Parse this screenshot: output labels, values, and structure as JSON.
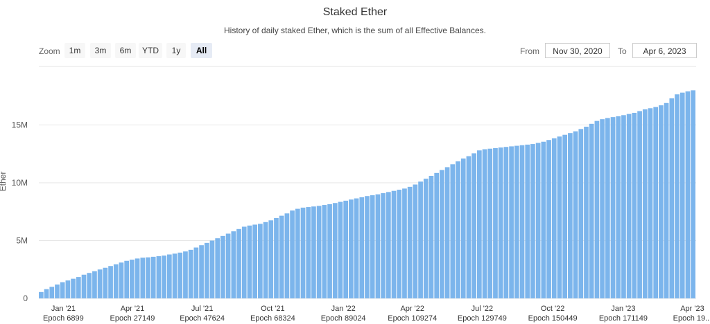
{
  "chart_data": {
    "type": "bar",
    "title": "Staked Ether",
    "subtitle": "History of daily staked Ether, which is the sum of all Effective Balances.",
    "ylabel": "Ether",
    "xlabel": "",
    "ylim": [
      0,
      18500000
    ],
    "y_ticks": [
      {
        "value": 0,
        "label": "0"
      },
      {
        "value": 5000000,
        "label": "5M"
      },
      {
        "value": 10000000,
        "label": "10M"
      },
      {
        "value": 15000000,
        "label": "15M"
      }
    ],
    "x_range": [
      "2020-11-30",
      "2023-04-06"
    ],
    "x_ticks": [
      {
        "date": "2021-01-01",
        "label": "Jan '21",
        "epoch": "Epoch 6899"
      },
      {
        "date": "2021-04-01",
        "label": "Apr '21",
        "epoch": "Epoch 27149"
      },
      {
        "date": "2021-07-01",
        "label": "Jul '21",
        "epoch": "Epoch 47624"
      },
      {
        "date": "2021-10-01",
        "label": "Oct '21",
        "epoch": "Epoch 68324"
      },
      {
        "date": "2022-01-01",
        "label": "Jan '22",
        "epoch": "Epoch 89024"
      },
      {
        "date": "2022-04-01",
        "label": "Apr '22",
        "epoch": "Epoch 109274"
      },
      {
        "date": "2022-07-01",
        "label": "Jul '22",
        "epoch": "Epoch 129749"
      },
      {
        "date": "2022-10-01",
        "label": "Oct '22",
        "epoch": "Epoch 150449"
      },
      {
        "date": "2023-01-01",
        "label": "Jan '23",
        "epoch": "Epoch 171149"
      },
      {
        "date": "2023-04-01",
        "label": "Apr '23",
        "epoch": "Epoch 19..."
      }
    ],
    "series": [
      {
        "values": [
          [
            0,
            "2020-11-30",
            550000
          ],
          [
            1,
            "2020-12-07",
            800000
          ],
          [
            2,
            "2020-12-14",
            1000000
          ],
          [
            3,
            "2020-12-21",
            1200000
          ],
          [
            4,
            "2020-12-28",
            1400000
          ],
          [
            5,
            "2021-01-04",
            1550000
          ],
          [
            6,
            "2021-01-11",
            1700000
          ],
          [
            7,
            "2021-01-18",
            1850000
          ],
          [
            8,
            "2021-01-25",
            2050000
          ],
          [
            9,
            "2021-02-01",
            2200000
          ],
          [
            10,
            "2021-02-08",
            2350000
          ],
          [
            11,
            "2021-02-15",
            2500000
          ],
          [
            12,
            "2021-02-22",
            2650000
          ],
          [
            13,
            "2021-03-01",
            2800000
          ],
          [
            14,
            "2021-03-08",
            2950000
          ],
          [
            15,
            "2021-03-15",
            3100000
          ],
          [
            16,
            "2021-03-22",
            3250000
          ],
          [
            17,
            "2021-03-29",
            3350000
          ],
          [
            18,
            "2021-04-05",
            3450000
          ],
          [
            19,
            "2021-04-12",
            3520000
          ],
          [
            20,
            "2021-04-19",
            3550000
          ],
          [
            21,
            "2021-04-26",
            3600000
          ],
          [
            22,
            "2021-05-03",
            3650000
          ],
          [
            23,
            "2021-05-10",
            3700000
          ],
          [
            24,
            "2021-05-17",
            3800000
          ],
          [
            25,
            "2021-05-24",
            3870000
          ],
          [
            26,
            "2021-05-31",
            3960000
          ],
          [
            27,
            "2021-06-07",
            4060000
          ],
          [
            28,
            "2021-06-14",
            4200000
          ],
          [
            29,
            "2021-06-21",
            4400000
          ],
          [
            30,
            "2021-06-28",
            4600000
          ],
          [
            31,
            "2021-07-05",
            4800000
          ],
          [
            32,
            "2021-07-12",
            5000000
          ],
          [
            33,
            "2021-07-19",
            5200000
          ],
          [
            34,
            "2021-07-26",
            5400000
          ],
          [
            35,
            "2021-08-02",
            5600000
          ],
          [
            36,
            "2021-08-09",
            5800000
          ],
          [
            37,
            "2021-08-16",
            6000000
          ],
          [
            38,
            "2021-08-23",
            6200000
          ],
          [
            39,
            "2021-08-30",
            6300000
          ],
          [
            40,
            "2021-09-06",
            6380000
          ],
          [
            41,
            "2021-09-13",
            6450000
          ],
          [
            42,
            "2021-09-20",
            6600000
          ],
          [
            43,
            "2021-09-27",
            6750000
          ],
          [
            44,
            "2021-10-04",
            6950000
          ],
          [
            45,
            "2021-10-11",
            7150000
          ],
          [
            46,
            "2021-10-18",
            7350000
          ],
          [
            47,
            "2021-10-25",
            7600000
          ],
          [
            48,
            "2021-11-01",
            7750000
          ],
          [
            49,
            "2021-11-08",
            7850000
          ],
          [
            50,
            "2021-11-15",
            7900000
          ],
          [
            51,
            "2021-11-22",
            7950000
          ],
          [
            52,
            "2021-11-29",
            8000000
          ],
          [
            53,
            "2021-12-06",
            8080000
          ],
          [
            54,
            "2021-12-13",
            8150000
          ],
          [
            55,
            "2021-12-20",
            8250000
          ],
          [
            56,
            "2021-12-27",
            8350000
          ],
          [
            57,
            "2022-01-03",
            8450000
          ],
          [
            58,
            "2022-01-10",
            8550000
          ],
          [
            59,
            "2022-01-17",
            8650000
          ],
          [
            60,
            "2022-01-24",
            8750000
          ],
          [
            61,
            "2022-01-31",
            8850000
          ],
          [
            62,
            "2022-02-07",
            8920000
          ],
          [
            63,
            "2022-02-14",
            9000000
          ],
          [
            64,
            "2022-02-21",
            9100000
          ],
          [
            65,
            "2022-02-28",
            9200000
          ],
          [
            66,
            "2022-03-07",
            9300000
          ],
          [
            67,
            "2022-03-14",
            9400000
          ],
          [
            68,
            "2022-03-21",
            9500000
          ],
          [
            69,
            "2022-03-28",
            9650000
          ],
          [
            70,
            "2022-04-04",
            9850000
          ],
          [
            71,
            "2022-04-11",
            10100000
          ],
          [
            72,
            "2022-04-18",
            10350000
          ],
          [
            73,
            "2022-04-25",
            10600000
          ],
          [
            74,
            "2022-05-02",
            10850000
          ],
          [
            75,
            "2022-05-09",
            11100000
          ],
          [
            76,
            "2022-05-16",
            11350000
          ],
          [
            77,
            "2022-05-23",
            11600000
          ],
          [
            78,
            "2022-05-30",
            11850000
          ],
          [
            79,
            "2022-06-06",
            12100000
          ],
          [
            80,
            "2022-06-13",
            12300000
          ],
          [
            81,
            "2022-06-20",
            12550000
          ],
          [
            82,
            "2022-06-27",
            12800000
          ],
          [
            83,
            "2022-07-04",
            12900000
          ],
          [
            84,
            "2022-07-11",
            12950000
          ],
          [
            85,
            "2022-07-18",
            13000000
          ],
          [
            86,
            "2022-07-25",
            13050000
          ],
          [
            87,
            "2022-08-01",
            13100000
          ],
          [
            88,
            "2022-08-08",
            13150000
          ],
          [
            89,
            "2022-08-15",
            13200000
          ],
          [
            90,
            "2022-08-22",
            13250000
          ],
          [
            91,
            "2022-08-29",
            13300000
          ],
          [
            92,
            "2022-09-05",
            13350000
          ],
          [
            93,
            "2022-09-12",
            13450000
          ],
          [
            94,
            "2022-09-19",
            13550000
          ],
          [
            95,
            "2022-09-26",
            13700000
          ],
          [
            96,
            "2022-10-03",
            13850000
          ],
          [
            97,
            "2022-10-10",
            14000000
          ],
          [
            98,
            "2022-10-17",
            14150000
          ],
          [
            99,
            "2022-10-24",
            14300000
          ],
          [
            100,
            "2022-10-31",
            14450000
          ],
          [
            101,
            "2022-11-07",
            14650000
          ],
          [
            102,
            "2022-11-14",
            14850000
          ],
          [
            103,
            "2022-11-21",
            15100000
          ],
          [
            104,
            "2022-11-28",
            15350000
          ],
          [
            105,
            "2022-12-05",
            15500000
          ],
          [
            106,
            "2022-12-12",
            15600000
          ],
          [
            107,
            "2022-12-19",
            15680000
          ],
          [
            108,
            "2022-12-26",
            15750000
          ],
          [
            109,
            "2023-01-02",
            15850000
          ],
          [
            110,
            "2023-01-09",
            15950000
          ],
          [
            111,
            "2023-01-16",
            16050000
          ],
          [
            112,
            "2023-01-23",
            16200000
          ],
          [
            113,
            "2023-01-30",
            16350000
          ],
          [
            114,
            "2023-02-06",
            16450000
          ],
          [
            115,
            "2023-02-13",
            16550000
          ],
          [
            116,
            "2023-02-20",
            16700000
          ],
          [
            117,
            "2023-02-27",
            16900000
          ],
          [
            118,
            "2023-03-06",
            17300000
          ],
          [
            119,
            "2023-03-13",
            17650000
          ],
          [
            120,
            "2023-03-20",
            17800000
          ],
          [
            121,
            "2023-03-27",
            17900000
          ],
          [
            122,
            "2023-04-03",
            18000000
          ]
        ]
      }
    ],
    "colors": {
      "bar": "#7cb5ec",
      "grid": "#e6e6e6"
    },
    "grid": true,
    "legend": "none"
  },
  "range_selector": {
    "zoom_label": "Zoom",
    "buttons": [
      "1m",
      "3m",
      "6m",
      "YTD",
      "1y",
      "All"
    ],
    "selected": "All",
    "from_label": "From",
    "from_value": "Nov 30, 2020",
    "to_label": "To",
    "to_value": "Apr 6, 2023"
  }
}
